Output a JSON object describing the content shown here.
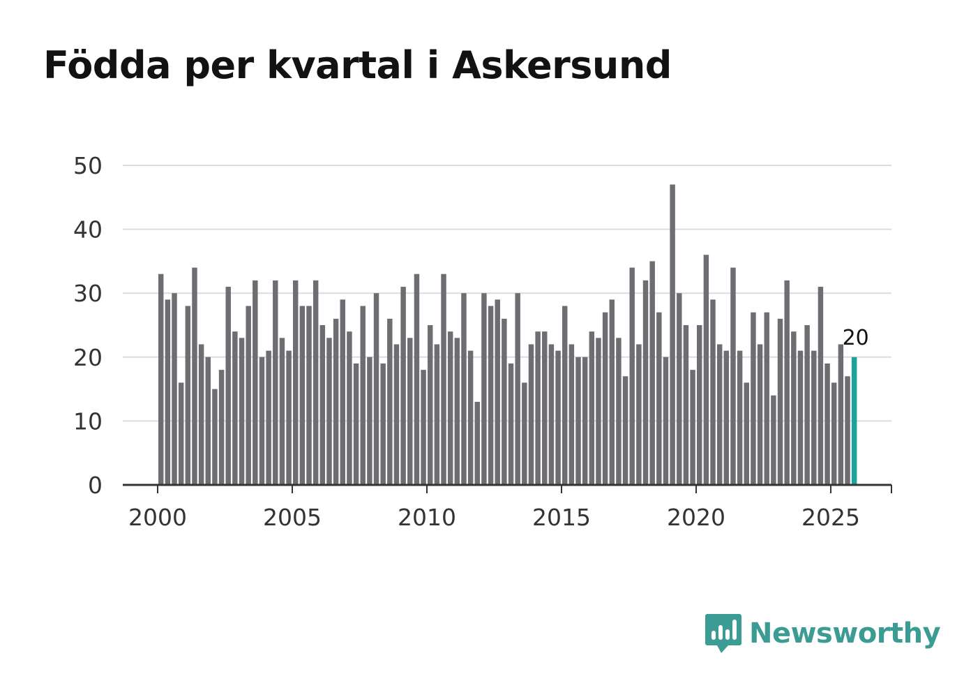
{
  "title": "Födda per kvartal i Askersund",
  "brand": {
    "name": "Newsworthy",
    "icon": "newsworthy-logo-icon",
    "color": "#3a9c93"
  },
  "chart_data": {
    "type": "bar",
    "title": "Födda per kvartal i Askersund",
    "xlabel": "",
    "ylabel": "",
    "ylim": [
      0,
      50
    ],
    "yticks": [
      0,
      10,
      20,
      30,
      40,
      50
    ],
    "xticks": [
      2000,
      2005,
      2010,
      2015,
      2020,
      2025
    ],
    "grid": true,
    "bar_color": "#6e6d72",
    "highlight_color": "#1aa396",
    "start": {
      "year": 2000,
      "quarter": 1
    },
    "values": [
      33,
      29,
      30,
      16,
      28,
      34,
      22,
      20,
      15,
      18,
      31,
      24,
      23,
      28,
      32,
      20,
      21,
      32,
      23,
      21,
      32,
      28,
      28,
      32,
      25,
      23,
      26,
      29,
      24,
      19,
      28,
      20,
      30,
      19,
      26,
      22,
      31,
      23,
      33,
      18,
      25,
      22,
      33,
      24,
      23,
      30,
      21,
      13,
      30,
      28,
      29,
      26,
      19,
      30,
      16,
      22,
      24,
      24,
      22,
      21,
      28,
      22,
      20,
      20,
      24,
      23,
      27,
      29,
      23,
      17,
      34,
      22,
      32,
      35,
      27,
      20,
      47,
      30,
      25,
      18,
      25,
      36,
      29,
      22,
      21,
      34,
      21,
      16,
      27,
      22,
      27,
      14,
      26,
      32,
      24,
      21,
      25,
      21,
      31,
      19,
      16,
      22,
      17,
      20
    ],
    "highlight_label": "20"
  }
}
